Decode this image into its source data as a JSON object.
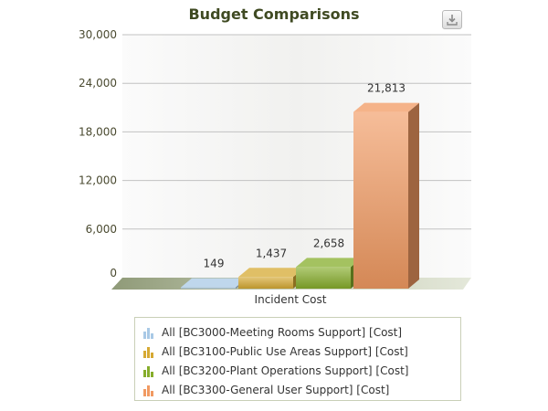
{
  "chart_data": {
    "type": "bar",
    "title": "Budget Comparisons",
    "xlabel": "Incident Cost",
    "ylabel": "",
    "ylim": [
      0,
      30000
    ],
    "yticks": [
      "0",
      "6,000",
      "12,000",
      "18,000",
      "24,000",
      "30,000"
    ],
    "ytick_values": [
      0,
      6000,
      12000,
      18000,
      24000,
      30000
    ],
    "categories": [
      "Incident Cost"
    ],
    "grid": true,
    "legend_position": "bottom",
    "series": [
      {
        "name": "All [BC3000-Meeting Rooms Support] [Cost]",
        "values": [
          149
        ],
        "label": "149",
        "color": "#a9c9e6"
      },
      {
        "name": "All [BC3100-Public Use Areas Support] [Cost]",
        "values": [
          1437
        ],
        "label": "1,437",
        "color": "#d6a933"
      },
      {
        "name": "All [BC3200-Plant Operations Support] [Cost]",
        "values": [
          2658
        ],
        "label": "2,658",
        "color": "#86ad2b"
      },
      {
        "name": "All [BC3300-General User Support] [Cost]",
        "values": [
          21813
        ],
        "label": "21,813",
        "color": "#f19a62"
      }
    ]
  },
  "toolbar": {
    "download_icon": "download-icon"
  }
}
